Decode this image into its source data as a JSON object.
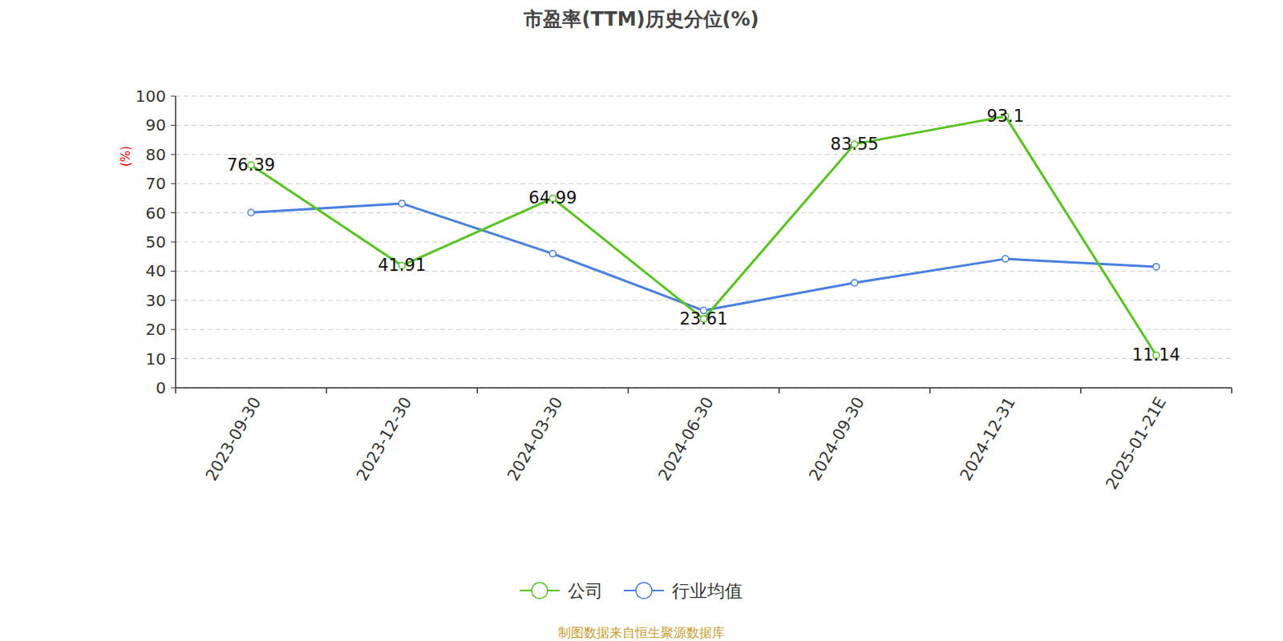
{
  "chart_data": {
    "type": "line",
    "title": "市盈率(TTM)历史分位(%)",
    "ylabel": "(%)",
    "source": "制图数据来自恒生聚源数据库",
    "categories": [
      "2023-09-30",
      "2023-12-30",
      "2024-03-30",
      "2024-06-30",
      "2024-09-30",
      "2024-12-31",
      "2025-01-21E"
    ],
    "series": [
      {
        "name": "公司",
        "color": "#58c322",
        "marker": "circle",
        "data_labels": true,
        "values": [
          76.39,
          41.91,
          64.99,
          23.61,
          83.55,
          93.1,
          11.14
        ]
      },
      {
        "name": "行业均值",
        "color": "#4a7fdf",
        "marker": "circle",
        "values": [
          60.1,
          63.2,
          46.0,
          26.5,
          36.0,
          44.2,
          41.5
        ]
      }
    ],
    "ylim": [
      0,
      100
    ],
    "yticks": [
      0,
      10,
      20,
      30,
      40,
      50,
      60,
      70,
      80,
      90,
      100
    ],
    "grid": true,
    "legend": "bottom"
  }
}
